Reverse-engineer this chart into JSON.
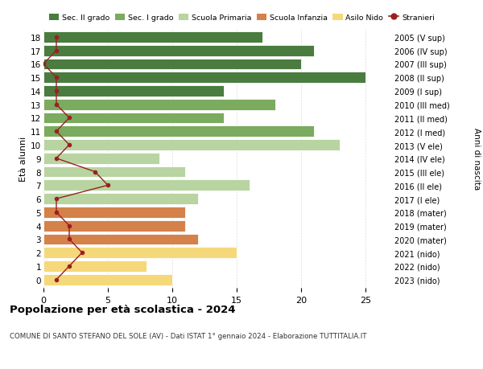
{
  "ages": [
    18,
    17,
    16,
    15,
    14,
    13,
    12,
    11,
    10,
    9,
    8,
    7,
    6,
    5,
    4,
    3,
    2,
    1,
    0
  ],
  "bar_values": [
    17,
    21,
    20,
    25,
    14,
    18,
    14,
    21,
    23,
    9,
    11,
    16,
    12,
    11,
    11,
    12,
    15,
    8,
    10
  ],
  "bar_colors": [
    "#4a7c3f",
    "#4a7c3f",
    "#4a7c3f",
    "#4a7c3f",
    "#4a7c3f",
    "#7aab5e",
    "#7aab5e",
    "#7aab5e",
    "#b8d4a0",
    "#b8d4a0",
    "#b8d4a0",
    "#b8d4a0",
    "#b8d4a0",
    "#d4824a",
    "#d4824a",
    "#d4824a",
    "#f5d87a",
    "#f5d87a",
    "#f5d87a"
  ],
  "stranieri_values": [
    1,
    1,
    0,
    1,
    1,
    1,
    2,
    1,
    2,
    1,
    4,
    5,
    1,
    1,
    2,
    2,
    3,
    2,
    1
  ],
  "right_labels": [
    "2005 (V sup)",
    "2006 (IV sup)",
    "2007 (III sup)",
    "2008 (II sup)",
    "2009 (I sup)",
    "2010 (III med)",
    "2011 (II med)",
    "2012 (I med)",
    "2013 (V ele)",
    "2014 (IV ele)",
    "2015 (III ele)",
    "2016 (II ele)",
    "2017 (I ele)",
    "2018 (mater)",
    "2019 (mater)",
    "2020 (mater)",
    "2021 (nido)",
    "2022 (nido)",
    "2023 (nido)"
  ],
  "legend_labels": [
    "Sec. II grado",
    "Sec. I grado",
    "Scuola Primaria",
    "Scuola Infanzia",
    "Asilo Nido",
    "Stranieri"
  ],
  "legend_colors": [
    "#4a7c3f",
    "#7aab5e",
    "#b8d4a0",
    "#d4824a",
    "#f5d87a",
    "#9b2020"
  ],
  "title": "Popolazione per età scolastica - 2024",
  "subtitle": "COMUNE DI SANTO STEFANO DEL SOLE (AV) - Dati ISTAT 1° gennaio 2024 - Elaborazione TUTTITALIA.IT",
  "xlabel_left": "Età alunni",
  "xlabel_right": "Anni di nascita",
  "xlim": [
    0,
    27
  ],
  "ylim": [
    -0.6,
    18.6
  ],
  "background_color": "#ffffff",
  "bar_background": "#ffffff",
  "grid_color": "#dddddd",
  "xticks": [
    0,
    5,
    10,
    15,
    20,
    25
  ]
}
